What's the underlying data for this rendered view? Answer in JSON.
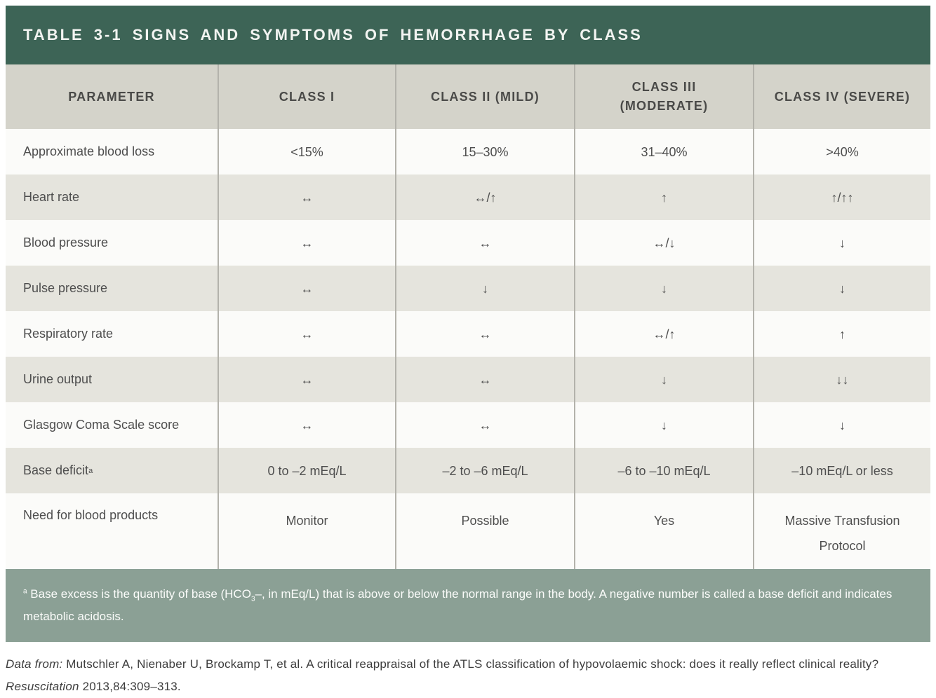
{
  "title": "TABLE 3-1 SIGNS AND SYMPTOMS OF HEMORRHAGE BY CLASS",
  "table": {
    "columns": [
      "PARAMETER",
      "CLASS I",
      "CLASS II (MILD)",
      "CLASS III (MODERATE)",
      "CLASS IV (SEVERE)"
    ],
    "rows": [
      {
        "parameter": "Approximate blood loss",
        "superscript": "",
        "values": [
          "<15%",
          "15–30%",
          "31–40%",
          ">40%"
        ]
      },
      {
        "parameter": "Heart rate",
        "superscript": "",
        "values": [
          "↔",
          "↔/↑",
          "↑",
          "↑/↑↑"
        ]
      },
      {
        "parameter": "Blood pressure",
        "superscript": "",
        "values": [
          "↔",
          "↔",
          "↔/↓",
          "↓"
        ]
      },
      {
        "parameter": "Pulse pressure",
        "superscript": "",
        "values": [
          "↔",
          "↓",
          "↓",
          "↓"
        ]
      },
      {
        "parameter": "Respiratory rate",
        "superscript": "",
        "values": [
          "↔",
          "↔",
          "↔/↑",
          "↑"
        ]
      },
      {
        "parameter": "Urine output",
        "superscript": "",
        "values": [
          "↔",
          "↔",
          "↓",
          "↓↓"
        ]
      },
      {
        "parameter": "Glasgow Coma Scale score",
        "superscript": "",
        "values": [
          "↔",
          "↔",
          "↓",
          "↓"
        ]
      },
      {
        "parameter": "Base deficit",
        "superscript": "a",
        "values": [
          "0 to –2 mEq/L",
          "–2 to –6 mEq/L",
          "–6 to –10 mEq/L",
          "–10 mEq/L or less"
        ]
      },
      {
        "parameter": "Need for blood products",
        "superscript": "",
        "values": [
          "Monitor",
          "Possible",
          "Yes",
          "Massive Transfusion Protocol"
        ]
      }
    ]
  },
  "footnote": {
    "marker": "a",
    "part1": " Base excess is the quantity of base (HCO",
    "sub": "3",
    "part2": "–, in mEq/L) that is above or below the normal range in the body. A negative number is called a base deficit and indicates metabolic acidosis."
  },
  "citation": {
    "prefix_italic": "Data from:",
    "middle": " Mutschler A, Nienaber U, Brockamp T, et al. A critical reappraisal of the ATLS classification of hypovolaemic shock: does it really reflect clinical reality? ",
    "journal_italic": "Resuscitation",
    "tail": " 2013,84:309–313."
  },
  "colors": {
    "title_bar": "#3d6456",
    "header_bg": "#d4d3ca",
    "row_light": "#fbfbf9",
    "row_alt": "#e5e4dd",
    "divider": "#b3b2ab",
    "footnote_bg": "#8ba095",
    "text": "#4c4c4c"
  }
}
